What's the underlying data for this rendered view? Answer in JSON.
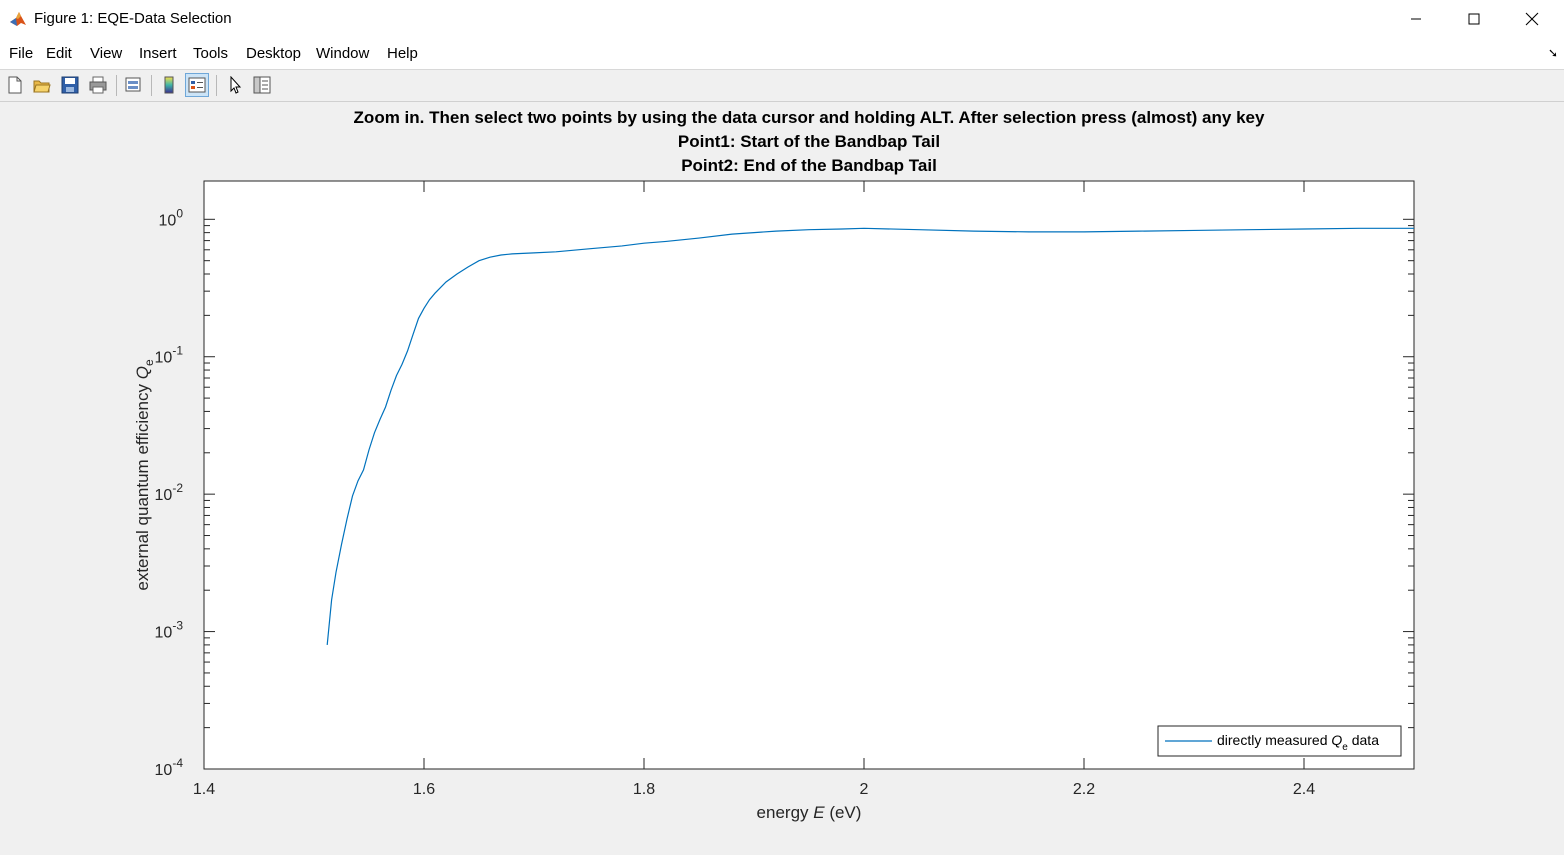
{
  "window": {
    "title": "Figure 1: EQE-Data Selection",
    "controls": [
      "minimize",
      "maximize",
      "close"
    ]
  },
  "menubar": {
    "items": [
      "File",
      "Edit",
      "View",
      "Insert",
      "Tools",
      "Desktop",
      "Window",
      "Help"
    ]
  },
  "toolbar": {
    "icons": [
      "new-figure-icon",
      "open-file-icon",
      "save-icon",
      "print-icon",
      "link-plot-icon",
      "insert-colorbar-icon",
      "insert-legend-icon",
      "edit-plot-arrow-icon",
      "property-inspector-icon"
    ]
  },
  "chart_data": {
    "type": "line",
    "title": [
      "Zoom in. Then select two points by using the data cursor and holding ALT. After selection press (almost) any key",
      "Point1: Start of the Bandbap Tail",
      "Point2: End of the Bandbap Tail"
    ],
    "xlabel": "energy  E (eV)",
    "ylabel": "external quantum efficiency  Qe",
    "xlim": [
      1.4,
      2.5
    ],
    "ylim": [
      0.0001,
      1.9
    ],
    "yscale": "log",
    "xticks": [
      1.4,
      1.6,
      1.8,
      2.0,
      2.2,
      2.4
    ],
    "xtick_labels": [
      "1.4",
      "1.6",
      "1.8",
      "2",
      "2.2",
      "2.4"
    ],
    "yticks": [
      0.0001,
      0.001,
      0.01,
      0.1,
      1
    ],
    "ytick_exponents": [
      "-4",
      "-3",
      "-2",
      "-1",
      "0"
    ],
    "legend": {
      "label": "directly measured  Qe data",
      "location": "bottom-right"
    },
    "grid": false,
    "line_color": "#0072bd",
    "series": [
      {
        "name": "directly measured  Qe data",
        "x": [
          1.512,
          1.516,
          1.52,
          1.525,
          1.53,
          1.535,
          1.54,
          1.545,
          1.55,
          1.555,
          1.56,
          1.565,
          1.57,
          1.575,
          1.58,
          1.585,
          1.59,
          1.595,
          1.6,
          1.605,
          1.61,
          1.62,
          1.63,
          1.64,
          1.65,
          1.66,
          1.67,
          1.68,
          1.7,
          1.72,
          1.75,
          1.78,
          1.8,
          1.82,
          1.85,
          1.88,
          1.9,
          1.92,
          1.95,
          1.98,
          2.0,
          2.05,
          2.1,
          2.15,
          2.2,
          2.25,
          2.3,
          2.35,
          2.4,
          2.45,
          2.5
        ],
        "y": [
          0.0008,
          0.0017,
          0.0027,
          0.0043,
          0.0066,
          0.0097,
          0.0125,
          0.015,
          0.021,
          0.028,
          0.035,
          0.043,
          0.057,
          0.073,
          0.088,
          0.11,
          0.145,
          0.19,
          0.225,
          0.26,
          0.29,
          0.35,
          0.4,
          0.45,
          0.5,
          0.53,
          0.55,
          0.56,
          0.57,
          0.58,
          0.61,
          0.64,
          0.67,
          0.69,
          0.73,
          0.78,
          0.8,
          0.82,
          0.84,
          0.85,
          0.86,
          0.84,
          0.82,
          0.81,
          0.81,
          0.82,
          0.83,
          0.84,
          0.85,
          0.86,
          0.86
        ]
      }
    ]
  }
}
